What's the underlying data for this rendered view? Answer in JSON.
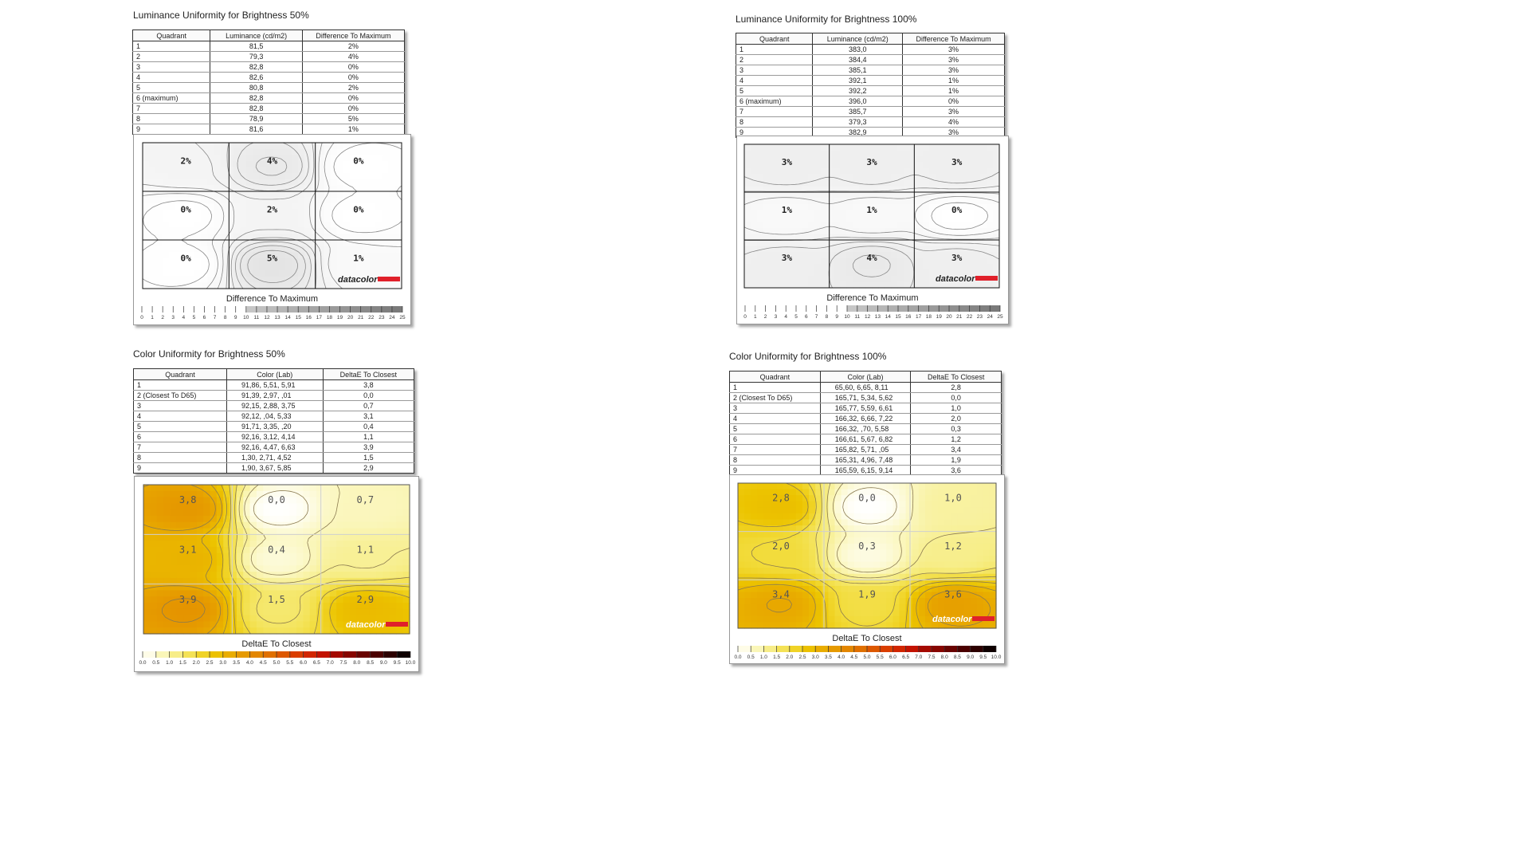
{
  "brand": "datacolor",
  "chart_data": [
    {
      "type": "table",
      "title": "Luminance Uniformity for Brightness 50%",
      "columns": [
        "Quadrant",
        "Luminance (cd/m2)",
        "Difference To Maximum"
      ],
      "rows": [
        [
          "1",
          "81,5",
          "2%"
        ],
        [
          "2",
          "79,3",
          "4%"
        ],
        [
          "3",
          "82,8",
          "0%"
        ],
        [
          "4",
          "82,6",
          "0%"
        ],
        [
          "5",
          "80,8",
          "2%"
        ],
        [
          "6 (maximum)",
          "82,8",
          "0%"
        ],
        [
          "7",
          "82,8",
          "0%"
        ],
        [
          "8",
          "78,9",
          "5%"
        ],
        [
          "9",
          "81,6",
          "1%"
        ]
      ]
    },
    {
      "type": "heatmap",
      "title": "Difference To Maximum",
      "grid": [
        [
          "2%",
          "4%",
          "0%"
        ],
        [
          "0%",
          "2%",
          "0%"
        ],
        [
          "0%",
          "5%",
          "1%"
        ]
      ],
      "scale_ticks": [
        "0",
        "1",
        "2",
        "3",
        "4",
        "5",
        "6",
        "7",
        "8",
        "9",
        "10",
        "11",
        "12",
        "13",
        "14",
        "15",
        "16",
        "17",
        "18",
        "19",
        "20",
        "21",
        "22",
        "23",
        "24",
        "25"
      ]
    },
    {
      "type": "table",
      "title": "Luminance Uniformity for Brightness 100%",
      "columns": [
        "Quadrant",
        "Luminance (cd/m2)",
        "Difference To Maximum"
      ],
      "rows": [
        [
          "1",
          "383,0",
          "3%"
        ],
        [
          "2",
          "384,4",
          "3%"
        ],
        [
          "3",
          "385,1",
          "3%"
        ],
        [
          "4",
          "392,1",
          "1%"
        ],
        [
          "5",
          "392,2",
          "1%"
        ],
        [
          "6 (maximum)",
          "396,0",
          "0%"
        ],
        [
          "7",
          "385,7",
          "3%"
        ],
        [
          "8",
          "379,3",
          "4%"
        ],
        [
          "9",
          "382,9",
          "3%"
        ]
      ]
    },
    {
      "type": "heatmap",
      "title": "Difference To Maximum",
      "grid": [
        [
          "3%",
          "3%",
          "3%"
        ],
        [
          "1%",
          "1%",
          "0%"
        ],
        [
          "3%",
          "4%",
          "3%"
        ]
      ],
      "scale_ticks": [
        "0",
        "1",
        "2",
        "3",
        "4",
        "5",
        "6",
        "7",
        "8",
        "9",
        "10",
        "11",
        "12",
        "13",
        "14",
        "15",
        "16",
        "17",
        "18",
        "19",
        "20",
        "21",
        "22",
        "23",
        "24",
        "25"
      ]
    },
    {
      "type": "table",
      "title": "Color Uniformity for Brightness 50%",
      "columns": [
        "Quadrant",
        "Color (Lab)",
        "DeltaE To Closest"
      ],
      "rows": [
        [
          "1",
          "91,86,   5,51,   5,91",
          "3,8"
        ],
        [
          "2 (Closest To D65)",
          "91,39,   2,97,   ,01",
          "0,0"
        ],
        [
          "3",
          "92,15,   2,88,   3,75",
          "0,7"
        ],
        [
          "4",
          "92,12,   ,04,   5,33",
          "3,1"
        ],
        [
          "5",
          "91,71,   3,35,   ,20",
          "0,4"
        ],
        [
          "6",
          "92,16,   3,12,   4,14",
          "1,1"
        ],
        [
          "7",
          "92,16,   4,47,   6,63",
          "3,9"
        ],
        [
          "8",
          "1,30,   2,71,   4,52",
          "1,5"
        ],
        [
          "9",
          "1,90,   3,67,   5,85",
          "2,9"
        ]
      ]
    },
    {
      "type": "heatmap",
      "title": "DeltaE To Closest",
      "grid": [
        [
          "3,8",
          "0,0",
          "0,7"
        ],
        [
          "3,1",
          "0,4",
          "1,1"
        ],
        [
          "3,9",
          "1,5",
          "2,9"
        ]
      ],
      "scale_ticks": [
        "0.0",
        "0.5",
        "1.0",
        "1.5",
        "2.0",
        "2.5",
        "3.0",
        "3.5",
        "4.0",
        "4.5",
        "5.0",
        "5.5",
        "6.0",
        "6.5",
        "7.0",
        "7.5",
        "8.0",
        "8.5",
        "9.0",
        "9.5",
        "10.0"
      ]
    },
    {
      "type": "table",
      "title": "Color Uniformity for Brightness 100%",
      "columns": [
        "Quadrant",
        "Color (Lab)",
        "DeltaE To Closest"
      ],
      "rows": [
        [
          "1",
          "65,60,   6,65,   8,11",
          "2,8"
        ],
        [
          "2 (Closest To D65)",
          "165,71,   5,34,   5,62",
          "0,0"
        ],
        [
          "3",
          "165,77,   5,59,   6,61",
          "1,0"
        ],
        [
          "4",
          "166,32,   6,66,   7,22",
          "2,0"
        ],
        [
          "5",
          "166,32,   ,70,   5,58",
          "0,3"
        ],
        [
          "6",
          "166,61,   5,67,   6,82",
          "1,2"
        ],
        [
          "7",
          "165,82,   5,71,   ,05",
          "3,4"
        ],
        [
          "8",
          "165,31,   4,96,   7,48",
          "1,9"
        ],
        [
          "9",
          "165,59,   6,15,   9,14",
          "3,6"
        ]
      ]
    },
    {
      "type": "heatmap",
      "title": "DeltaE To Closest",
      "grid": [
        [
          "2,8",
          "0,0",
          "1,0"
        ],
        [
          "2,0",
          "0,3",
          "1,2"
        ],
        [
          "3,4",
          "1,9",
          "3,6"
        ]
      ],
      "scale_ticks": [
        "0.0",
        "0.5",
        "1.0",
        "1.5",
        "2.0",
        "2.5",
        "3.0",
        "3.5",
        "4.0",
        "4.5",
        "5.0",
        "5.5",
        "6.0",
        "6.5",
        "7.0",
        "7.5",
        "8.0",
        "8.5",
        "9.0",
        "9.5",
        "10.0"
      ]
    }
  ],
  "colors": {
    "brand_red": "#e0202a",
    "gray_scale": [
      "#ffffff",
      "#777777"
    ],
    "heat_scale": [
      "#ffffff",
      "#fbf7c0",
      "#f6ec80",
      "#f2dc3c",
      "#ecc400",
      "#e8aa00",
      "#e49000",
      "#e07400",
      "#dc5400",
      "#d83000",
      "#c81400",
      "#a00800",
      "#780400",
      "#500000",
      "#280000",
      "#000000"
    ]
  }
}
